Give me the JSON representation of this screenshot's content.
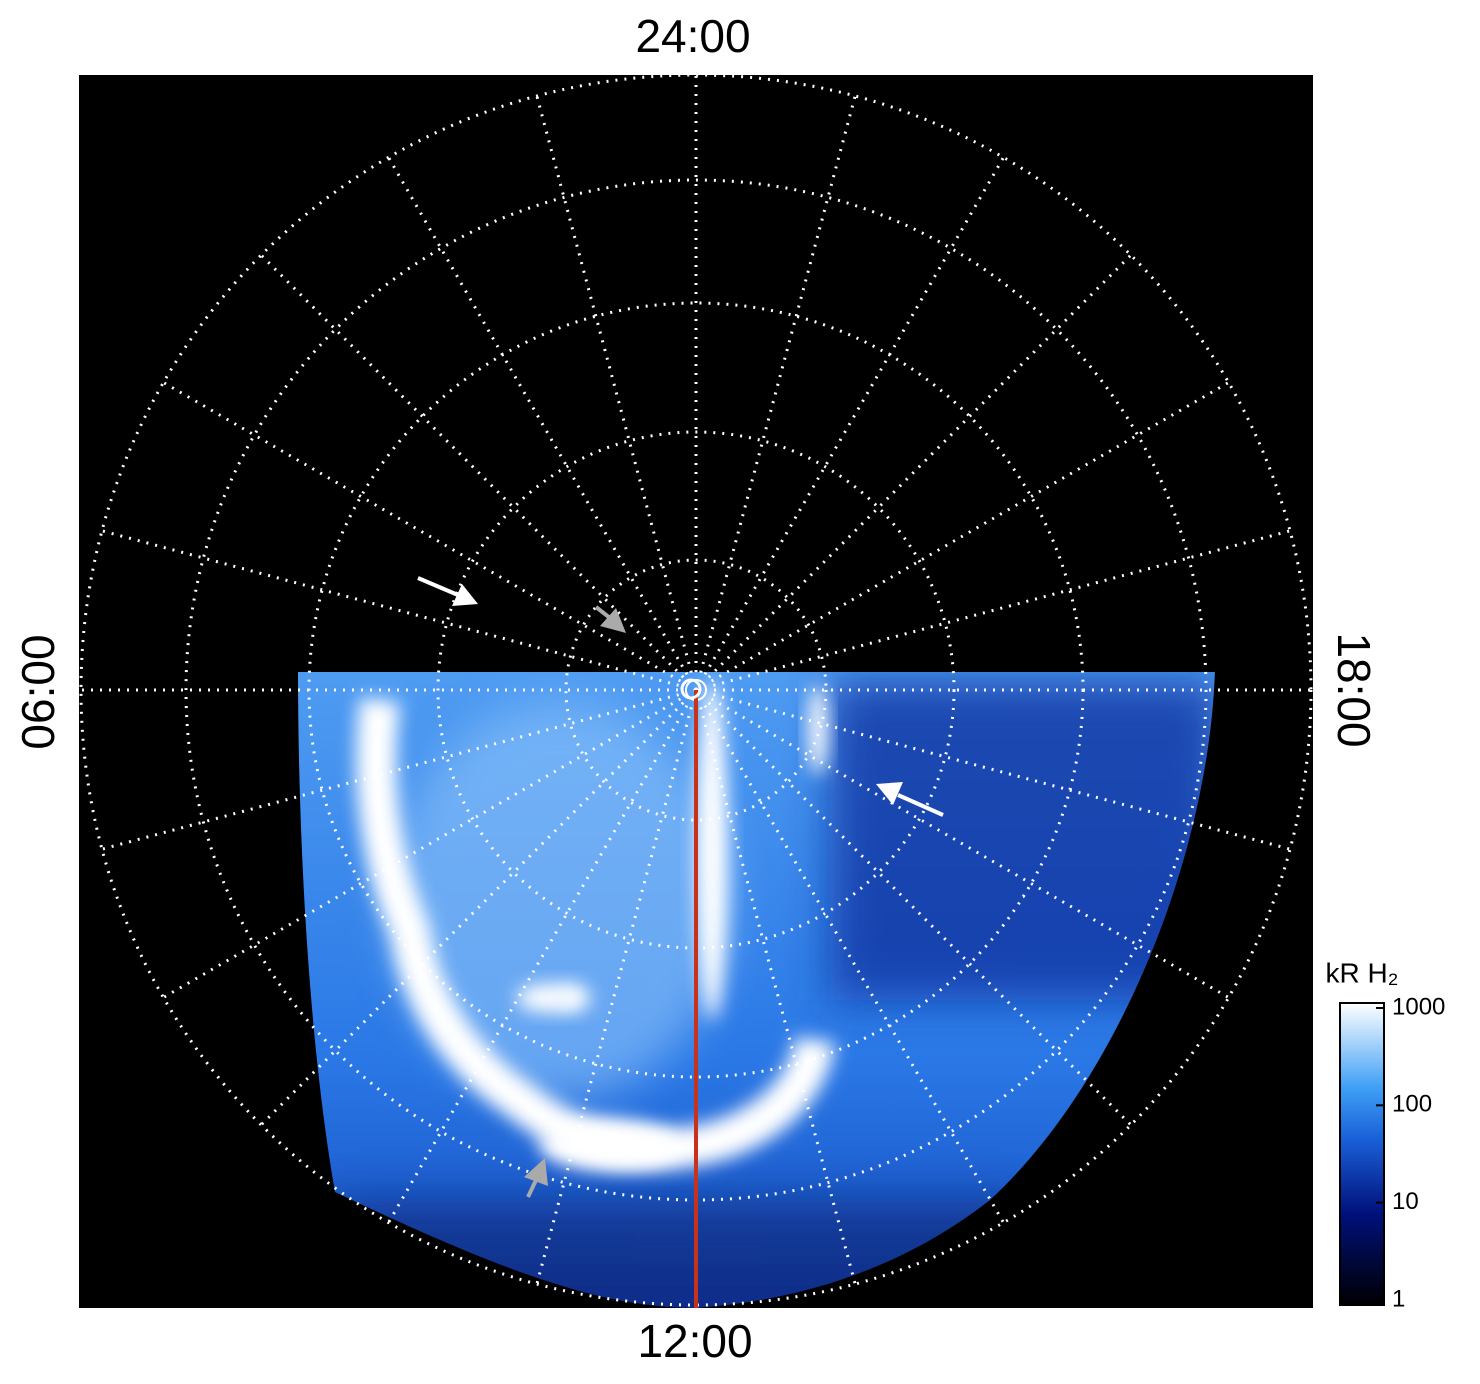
{
  "labels": {
    "top": "24:00",
    "bottom": "12:00",
    "left": "06:00",
    "right": "18:00"
  },
  "colorbar": {
    "title": "kR H₂",
    "scale": "log",
    "lim": [
      1,
      1000
    ],
    "ticks": [
      1,
      10,
      100,
      1000
    ]
  }
}
